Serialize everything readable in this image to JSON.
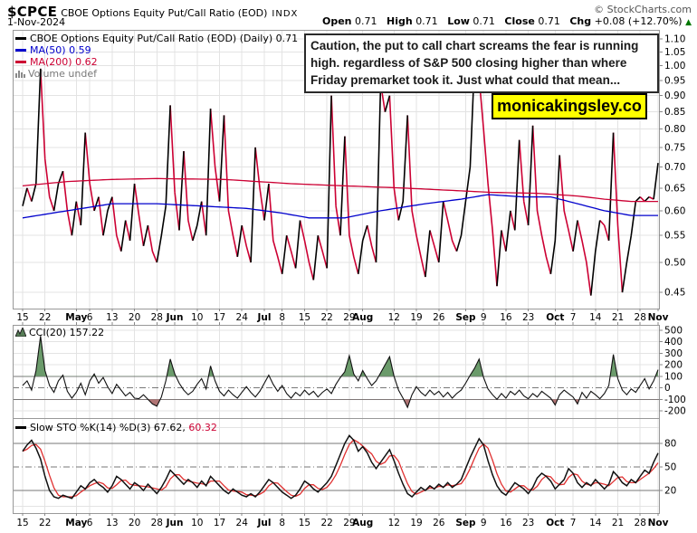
{
  "header": {
    "symbol": "$CPCE",
    "title": "CBOE Options Equity Put/Call Ratio (EOD)",
    "exchange": "INDX",
    "date": "1-Nov-2024",
    "copyright": "© StockCharts.com",
    "ohlc": {
      "open_label": "Open",
      "open": "0.71",
      "high_label": "High",
      "high": "0.71",
      "low_label": "Low",
      "low": "0.71",
      "close_label": "Close",
      "close": "0.71",
      "chg_label": "Chg",
      "chg": "+0.08 (+12.70%)",
      "direction": "up",
      "arrow": "▲"
    }
  },
  "legend": {
    "price": "CBOE Options Equity Put/Call Ratio (EOD) (Daily) 0.71",
    "ma50": "MA(50) 0.59",
    "ma200": "MA(200) 0.62",
    "volume": "Volume undef"
  },
  "annotation": {
    "text": "Caution, the put to call chart screams the fear is running high. regardless of S&P 500 closing higher than where Friday premarket took it. Just what could that mean..."
  },
  "watermark": {
    "text": "monicakingsley.co",
    "bg": "#ffff00"
  },
  "cci_legend": {
    "label": "CCI(20) 157.22"
  },
  "sto_legend": {
    "label": "Slow STO %K(14) %D(3) 67.62,",
    "d_value": "60.32"
  },
  "colors": {
    "price_up": "#000000",
    "price_down": "#cc0033",
    "ma50": "#0000cc",
    "ma200": "#cc0033",
    "cci_line": "#111111",
    "cci_fill_high": "#6b9b6b",
    "cci_fill_low": "#b07474",
    "sto_k": "#111111",
    "sto_d": "#e03030",
    "grid": "#e3e3e3",
    "band": "#777777",
    "border": "#999999",
    "watermark_bg": "#ffff00",
    "chg_up": "#007700"
  },
  "chart_data": [
    {
      "type": "line",
      "title": "CBOE Options Equity Put/Call Ratio (EOD) (Daily)",
      "last": 0.71,
      "yscale": "log",
      "ylim": [
        0.425,
        1.135
      ],
      "yticks": [
        1.1,
        1.05,
        1.0,
        0.95,
        0.9,
        0.85,
        0.8,
        0.75,
        0.7,
        0.65,
        0.6,
        0.55,
        0.5,
        0.45
      ],
      "xticks": [
        {
          "label": "15",
          "i": 0
        },
        {
          "label": "22",
          "i": 5
        },
        {
          "label": "May",
          "i": 12,
          "bold": true
        },
        {
          "label": "6",
          "i": 15
        },
        {
          "label": "13",
          "i": 20
        },
        {
          "label": "20",
          "i": 25
        },
        {
          "label": "28",
          "i": 30
        },
        {
          "label": "Jun",
          "i": 34,
          "bold": true
        },
        {
          "label": "10",
          "i": 39
        },
        {
          "label": "17",
          "i": 44
        },
        {
          "label": "24",
          "i": 49
        },
        {
          "label": "Jul",
          "i": 54,
          "bold": true
        },
        {
          "label": "8",
          "i": 58
        },
        {
          "label": "15",
          "i": 63
        },
        {
          "label": "22",
          "i": 68
        },
        {
          "label": "29",
          "i": 73
        },
        {
          "label": "Aug",
          "i": 76,
          "bold": true
        },
        {
          "label": "12",
          "i": 83
        },
        {
          "label": "19",
          "i": 88
        },
        {
          "label": "26",
          "i": 93
        },
        {
          "label": "Sep",
          "i": 99,
          "bold": true
        },
        {
          "label": "9",
          "i": 103
        },
        {
          "label": "16",
          "i": 108
        },
        {
          "label": "23",
          "i": 113
        },
        {
          "label": "Oct",
          "i": 119,
          "bold": true
        },
        {
          "label": "7",
          "i": 123
        },
        {
          "label": "14",
          "i": 128
        },
        {
          "label": "21",
          "i": 133
        },
        {
          "label": "28",
          "i": 138
        },
        {
          "label": "Nov",
          "i": 142,
          "bold": true
        }
      ],
      "series": [
        {
          "name": "price",
          "style": "black when rising, red when falling",
          "values": [
            0.61,
            0.65,
            0.62,
            0.66,
            0.99,
            0.72,
            0.63,
            0.6,
            0.66,
            0.69,
            0.6,
            0.55,
            0.62,
            0.57,
            0.79,
            0.66,
            0.6,
            0.63,
            0.55,
            0.6,
            0.63,
            0.55,
            0.52,
            0.58,
            0.54,
            0.66,
            0.59,
            0.53,
            0.57,
            0.52,
            0.5,
            0.55,
            0.61,
            0.87,
            0.64,
            0.56,
            0.74,
            0.58,
            0.54,
            0.57,
            0.62,
            0.55,
            0.86,
            0.7,
            0.62,
            0.84,
            0.6,
            0.55,
            0.51,
            0.57,
            0.53,
            0.5,
            0.75,
            0.65,
            0.58,
            0.66,
            0.54,
            0.51,
            0.48,
            0.55,
            0.52,
            0.49,
            0.58,
            0.54,
            0.5,
            0.47,
            0.55,
            0.52,
            0.49,
            0.9,
            0.61,
            0.55,
            0.78,
            0.55,
            0.51,
            0.48,
            0.54,
            0.57,
            0.53,
            0.5,
            0.94,
            0.85,
            0.9,
            0.65,
            0.58,
            0.62,
            0.84,
            0.6,
            0.55,
            0.51,
            0.475,
            0.56,
            0.53,
            0.5,
            0.62,
            0.58,
            0.54,
            0.52,
            0.55,
            0.62,
            0.7,
            1.02,
            0.96,
            0.8,
            0.66,
            0.56,
            0.46,
            0.56,
            0.52,
            0.6,
            0.56,
            0.77,
            0.62,
            0.57,
            0.81,
            0.6,
            0.55,
            0.51,
            0.48,
            0.54,
            0.73,
            0.6,
            0.56,
            0.52,
            0.58,
            0.54,
            0.5,
            0.445,
            0.52,
            0.58,
            0.57,
            0.54,
            0.79,
            0.57,
            0.45,
            0.5,
            0.55,
            0.62,
            0.63,
            0.62,
            0.63,
            0.625,
            0.71
          ]
        },
        {
          "name": "MA(50)",
          "last": 0.59,
          "color": "#0000cc",
          "keypoints": [
            {
              "i": 0,
              "v": 0.585
            },
            {
              "i": 10,
              "v": 0.6
            },
            {
              "i": 20,
              "v": 0.615
            },
            {
              "i": 30,
              "v": 0.615
            },
            {
              "i": 40,
              "v": 0.61
            },
            {
              "i": 50,
              "v": 0.605
            },
            {
              "i": 58,
              "v": 0.595
            },
            {
              "i": 64,
              "v": 0.585
            },
            {
              "i": 72,
              "v": 0.585
            },
            {
              "i": 80,
              "v": 0.6
            },
            {
              "i": 90,
              "v": 0.615
            },
            {
              "i": 98,
              "v": 0.625
            },
            {
              "i": 104,
              "v": 0.635
            },
            {
              "i": 112,
              "v": 0.63
            },
            {
              "i": 118,
              "v": 0.63
            },
            {
              "i": 124,
              "v": 0.615
            },
            {
              "i": 130,
              "v": 0.6
            },
            {
              "i": 136,
              "v": 0.59
            },
            {
              "i": 142,
              "v": 0.59
            }
          ]
        },
        {
          "name": "MA(200)",
          "last": 0.62,
          "color": "#cc0033",
          "keypoints": [
            {
              "i": 0,
              "v": 0.655
            },
            {
              "i": 10,
              "v": 0.665
            },
            {
              "i": 20,
              "v": 0.67
            },
            {
              "i": 30,
              "v": 0.672
            },
            {
              "i": 45,
              "v": 0.67
            },
            {
              "i": 60,
              "v": 0.66
            },
            {
              "i": 72,
              "v": 0.655
            },
            {
              "i": 85,
              "v": 0.65
            },
            {
              "i": 95,
              "v": 0.645
            },
            {
              "i": 105,
              "v": 0.64
            },
            {
              "i": 115,
              "v": 0.638
            },
            {
              "i": 124,
              "v": 0.632
            },
            {
              "i": 130,
              "v": 0.625
            },
            {
              "i": 136,
              "v": 0.62
            },
            {
              "i": 142,
              "v": 0.62
            }
          ]
        }
      ]
    },
    {
      "type": "line",
      "title": "CCI(20)",
      "last": 157.22,
      "ylim": [
        -263,
        547
      ],
      "yticks": [
        500,
        400,
        300,
        200,
        100,
        0,
        -100,
        -200
      ],
      "bands": {
        "upper": 100,
        "lower": -100,
        "center": 0
      },
      "values": [
        20,
        60,
        -20,
        150,
        450,
        150,
        20,
        -40,
        60,
        110,
        -30,
        -90,
        -40,
        40,
        -60,
        60,
        120,
        40,
        90,
        10,
        -50,
        30,
        -20,
        -70,
        -40,
        -90,
        -95,
        -60,
        -100,
        -140,
        -160,
        -80,
        60,
        250,
        120,
        40,
        -20,
        -60,
        -30,
        30,
        80,
        -10,
        190,
        60,
        -30,
        -70,
        -20,
        -60,
        -90,
        -40,
        10,
        -40,
        -80,
        -30,
        40,
        110,
        30,
        -30,
        20,
        -50,
        -90,
        -40,
        -70,
        -20,
        -60,
        -30,
        -80,
        -40,
        -10,
        -50,
        30,
        90,
        140,
        280,
        120,
        60,
        150,
        80,
        20,
        60,
        130,
        200,
        270,
        100,
        -20,
        -90,
        -170,
        -60,
        10,
        -40,
        -70,
        -20,
        -60,
        -30,
        -80,
        -40,
        -90,
        -50,
        -20,
        40,
        110,
        170,
        250,
        90,
        -10,
        -60,
        -100,
        -50,
        -90,
        -30,
        -60,
        -20,
        -70,
        -95,
        -50,
        -80,
        -30,
        -60,
        -90,
        -150,
        -60,
        -20,
        -50,
        -80,
        -140,
        -40,
        -90,
        -30,
        -60,
        -95,
        -50,
        20,
        290,
        80,
        -20,
        -60,
        -10,
        -40,
        20,
        80,
        -10,
        60,
        157.22
      ]
    },
    {
      "type": "line",
      "title": "Slow STO %K(14) %D(3)",
      "k_last": 67.62,
      "d_last": 60.32,
      "ylim": [
        -8.8,
        112.3
      ],
      "yticks": [
        80,
        50,
        20
      ],
      "bands": {
        "upper": 80,
        "lower": 20,
        "center": 50
      },
      "k_values": [
        70,
        78,
        84,
        74,
        60,
        38,
        20,
        12,
        10,
        14,
        12,
        10,
        18,
        26,
        22,
        30,
        34,
        28,
        24,
        18,
        26,
        38,
        34,
        28,
        22,
        30,
        26,
        20,
        28,
        22,
        16,
        24,
        34,
        46,
        40,
        34,
        28,
        34,
        30,
        24,
        32,
        26,
        38,
        32,
        26,
        20,
        16,
        22,
        18,
        14,
        12,
        16,
        12,
        18,
        26,
        34,
        30,
        24,
        18,
        14,
        10,
        14,
        22,
        32,
        28,
        22,
        18,
        24,
        30,
        38,
        52,
        66,
        80,
        90,
        84,
        70,
        76,
        68,
        56,
        48,
        56,
        64,
        72,
        58,
        42,
        28,
        16,
        12,
        18,
        24,
        20,
        26,
        22,
        28,
        24,
        30,
        24,
        28,
        34,
        48,
        62,
        74,
        86,
        78,
        58,
        40,
        26,
        18,
        14,
        22,
        30,
        26,
        22,
        16,
        24,
        36,
        42,
        38,
        32,
        22,
        28,
        34,
        48,
        42,
        30,
        24,
        30,
        26,
        34,
        28,
        22,
        28,
        44,
        38,
        30,
        26,
        34,
        30,
        38,
        46,
        42,
        56,
        67.62
      ]
    }
  ]
}
